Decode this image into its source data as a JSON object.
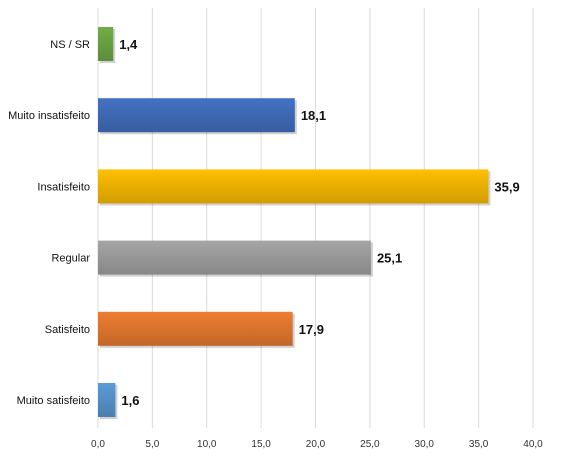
{
  "chart_data": {
    "type": "bar",
    "orientation": "horizontal",
    "categories": [
      "NS / SR",
      "Muito insatisfeito",
      "Insatisfeito",
      "Regular",
      "Satisfeito",
      "Muito satisfeito"
    ],
    "values": [
      1.4,
      18.1,
      35.9,
      25.1,
      17.9,
      1.6
    ],
    "value_labels": [
      "1,4",
      "18,1",
      "35,9",
      "25,1",
      "17,9",
      "1,6"
    ],
    "colors": [
      "#70ad47",
      "#4472c4",
      "#ffc000",
      "#a5a5a5",
      "#ed7d31",
      "#5b9bd5"
    ],
    "x_ticks": [
      0,
      5,
      10,
      15,
      20,
      25,
      30,
      35,
      40
    ],
    "x_tick_labels": [
      "0,0",
      "5,0",
      "10,0",
      "15,0",
      "20,0",
      "25,0",
      "30,0",
      "35,0",
      "40,0"
    ],
    "xlim": [
      0,
      40
    ],
    "grid": true,
    "legend": "none",
    "title": "",
    "xlabel": "",
    "ylabel": ""
  }
}
